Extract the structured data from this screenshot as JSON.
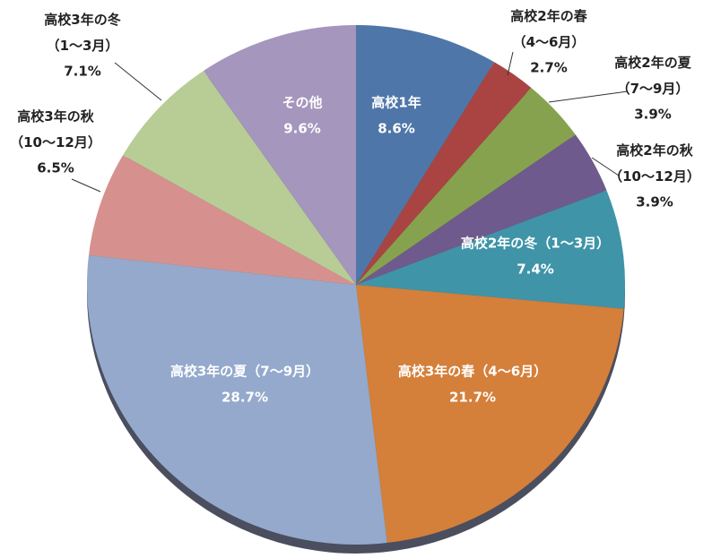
{
  "chart_data": {
    "type": "pie",
    "categories": [
      "高校1年",
      "高校2年の春（4～6月）",
      "高校2年の夏（7～9月）",
      "高校2年の秋（10～12月）",
      "高校2年の冬（1～3月）",
      "高校3年の春（4～6月）",
      "高校3年の夏（7～9月）",
      "高校3年の秋（10～12月）",
      "高校3年の冬（1～3月）",
      "その他"
    ],
    "values": [
      8.6,
      2.7,
      3.9,
      3.9,
      7.4,
      21.7,
      28.7,
      6.5,
      7.1,
      9.6
    ],
    "value_labels": [
      "8.6%",
      "2.7%",
      "3.9%",
      "3.9%",
      "7.4%",
      "21.7%",
      "28.7%",
      "6.5%",
      "7.1%",
      "9.6%"
    ],
    "colors": [
      "#4f76a8",
      "#a94442",
      "#86a24e",
      "#6e5a8c",
      "#3f94a8",
      "#d47f3a",
      "#94a9cc",
      "#d6918e",
      "#b8cc96",
      "#a596bd"
    ]
  }
}
